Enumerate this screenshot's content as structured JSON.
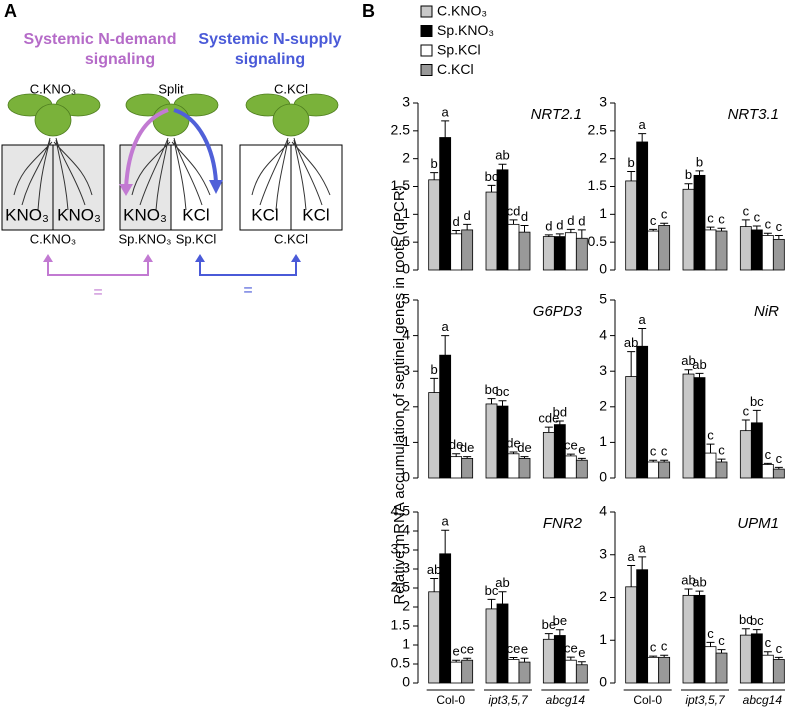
{
  "panel_a": {
    "label": "A",
    "demand_title": [
      "Systemic N-demand",
      "signaling"
    ],
    "supply_title": [
      "Systemic N-supply",
      "signaling"
    ],
    "plant_labels": [
      "C.KNO₃",
      "Split",
      "C.KCl"
    ],
    "box_labels": [
      "KNO₃",
      "KNO₃",
      "KNO₃",
      "KCl",
      "KCl",
      "KCl"
    ],
    "condition_labels": [
      "C.KNO₃",
      "Sp.KNO₃",
      "Sp.KCl",
      "C.KCl"
    ],
    "equals": [
      "=",
      "="
    ]
  },
  "panel_b": {
    "label": "B",
    "y_axis_label": "Relative mRNA accumulation of sentinel genes in roots (qPCR)"
  },
  "chart_data": [
    {
      "type": "bar",
      "title": "NRT2.1",
      "ylim": [
        0,
        3
      ],
      "yticks": [
        0,
        0.5,
        1,
        1.5,
        2,
        2.5,
        3
      ],
      "series": [
        {
          "name": "C.KNO₃",
          "color": "#c8c8c8",
          "values": [
            1.62,
            1.4,
            0.6
          ],
          "errors": [
            0.13,
            0.12,
            0.03
          ],
          "letters": [
            "b",
            "bc",
            "d"
          ]
        },
        {
          "name": "Sp.KNO₃",
          "color": "#000000",
          "values": [
            2.38,
            1.8,
            0.6
          ],
          "errors": [
            0.3,
            0.1,
            0.05
          ],
          "letters": [
            "a",
            "ab",
            "d"
          ]
        },
        {
          "name": "Sp.KCl",
          "color": "#ffffff",
          "values": [
            0.65,
            0.82,
            0.67
          ],
          "errors": [
            0.06,
            0.08,
            0.06
          ],
          "letters": [
            "d",
            "cd",
            "d"
          ]
        },
        {
          "name": "C.KCl",
          "color": "#999999",
          "values": [
            0.72,
            0.68,
            0.57
          ],
          "errors": [
            0.1,
            0.12,
            0.15
          ],
          "letters": [
            "d",
            "d",
            "d"
          ]
        }
      ]
    },
    {
      "type": "bar",
      "title": "NRT3.1",
      "ylim": [
        0,
        3
      ],
      "yticks": [
        0,
        0.5,
        1,
        1.5,
        2,
        2.5,
        3
      ],
      "series": [
        {
          "color": "#c8c8c8",
          "values": [
            1.6,
            1.45,
            0.78
          ],
          "errors": [
            0.17,
            0.1,
            0.12
          ],
          "letters": [
            "b",
            "b",
            "c"
          ]
        },
        {
          "color": "#000000",
          "values": [
            2.3,
            1.7,
            0.72
          ],
          "errors": [
            0.15,
            0.08,
            0.07
          ],
          "letters": [
            "a",
            "b",
            "c"
          ]
        },
        {
          "color": "#ffffff",
          "values": [
            0.7,
            0.72,
            0.62
          ],
          "errors": [
            0.03,
            0.05,
            0.04
          ],
          "letters": [
            "c",
            "c",
            "c"
          ]
        },
        {
          "color": "#999999",
          "values": [
            0.8,
            0.7,
            0.55
          ],
          "errors": [
            0.04,
            0.05,
            0.07
          ],
          "letters": [
            "c",
            "c",
            "c"
          ]
        }
      ]
    },
    {
      "type": "bar",
      "title": "G6PD3",
      "ylim": [
        0,
        5
      ],
      "yticks": [
        0,
        1,
        2,
        3,
        4,
        5
      ],
      "series": [
        {
          "color": "#c8c8c8",
          "values": [
            2.4,
            2.08,
            1.28
          ],
          "errors": [
            0.4,
            0.15,
            0.15
          ],
          "letters": [
            "b",
            "bc",
            "cde"
          ]
        },
        {
          "color": "#000000",
          "values": [
            3.45,
            2.02,
            1.5
          ],
          "errors": [
            0.55,
            0.15,
            0.1
          ],
          "letters": [
            "a",
            "bc",
            "bd"
          ]
        },
        {
          "color": "#ffffff",
          "values": [
            0.6,
            0.68,
            0.62
          ],
          "errors": [
            0.08,
            0.05,
            0.05
          ],
          "letters": [
            "de",
            "de",
            "ce"
          ]
        },
        {
          "color": "#999999",
          "values": [
            0.55,
            0.55,
            0.5
          ],
          "errors": [
            0.05,
            0.05,
            0.05
          ],
          "letters": [
            "de",
            "de",
            "e"
          ]
        }
      ]
    },
    {
      "type": "bar",
      "title": "NiR",
      "ylim": [
        0,
        5
      ],
      "yticks": [
        0,
        1,
        2,
        3,
        4,
        5
      ],
      "series": [
        {
          "color": "#c8c8c8",
          "values": [
            2.85,
            2.92,
            1.33
          ],
          "errors": [
            0.7,
            0.12,
            0.3
          ],
          "letters": [
            "ab",
            "ab",
            "c"
          ]
        },
        {
          "color": "#000000",
          "values": [
            3.7,
            2.82,
            1.55
          ],
          "errors": [
            0.5,
            0.12,
            0.35
          ],
          "letters": [
            "a",
            "ab",
            "bc"
          ]
        },
        {
          "color": "#ffffff",
          "values": [
            0.45,
            0.7,
            0.38
          ],
          "errors": [
            0.05,
            0.25,
            0.03
          ],
          "letters": [
            "c",
            "c",
            "c"
          ]
        },
        {
          "color": "#999999",
          "values": [
            0.45,
            0.45,
            0.25
          ],
          "errors": [
            0.05,
            0.08,
            0.05
          ],
          "letters": [
            "c",
            "c",
            "c"
          ]
        }
      ]
    },
    {
      "type": "bar",
      "title": "FNR2",
      "ylim": [
        0,
        4.5
      ],
      "yticks": [
        0,
        0.5,
        1,
        1.5,
        2,
        2.5,
        3,
        3.5,
        4,
        4.5
      ],
      "categories": [
        "Col-0",
        "ipt3,5,7",
        "abcg14"
      ],
      "series": [
        {
          "color": "#c8c8c8",
          "values": [
            2.4,
            1.95,
            1.15
          ],
          "errors": [
            0.35,
            0.25,
            0.15
          ],
          "letters": [
            "ab",
            "bc",
            "be"
          ]
        },
        {
          "color": "#000000",
          "values": [
            3.4,
            2.08,
            1.25
          ],
          "errors": [
            0.62,
            0.32,
            0.15
          ],
          "letters": [
            "a",
            "ab",
            "be"
          ]
        },
        {
          "color": "#ffffff",
          "values": [
            0.55,
            0.62,
            0.6
          ],
          "errors": [
            0.05,
            0.05,
            0.08
          ],
          "letters": [
            "e",
            "ce",
            "ce"
          ]
        },
        {
          "color": "#999999",
          "values": [
            0.6,
            0.55,
            0.48
          ],
          "errors": [
            0.05,
            0.1,
            0.08
          ],
          "letters": [
            "ce",
            "e",
            "e"
          ]
        }
      ]
    },
    {
      "type": "bar",
      "title": "UPM1",
      "ylim": [
        0,
        4
      ],
      "yticks": [
        0,
        1,
        2,
        3,
        4
      ],
      "categories": [
        "Col-0",
        "ipt3,5,7",
        "abcg14"
      ],
      "series": [
        {
          "color": "#c8c8c8",
          "values": [
            2.25,
            2.05,
            1.12
          ],
          "errors": [
            0.5,
            0.15,
            0.15
          ],
          "letters": [
            "a",
            "ab",
            "bc"
          ]
        },
        {
          "color": "#000000",
          "values": [
            2.65,
            2.05,
            1.15
          ],
          "errors": [
            0.3,
            0.1,
            0.1
          ],
          "letters": [
            "a",
            "ab",
            "bc"
          ]
        },
        {
          "color": "#ffffff",
          "values": [
            0.6,
            0.85,
            0.65
          ],
          "errors": [
            0.03,
            0.1,
            0.08
          ],
          "letters": [
            "c",
            "c",
            "c"
          ]
        },
        {
          "color": "#999999",
          "values": [
            0.6,
            0.7,
            0.55
          ],
          "errors": [
            0.05,
            0.08,
            0.05
          ],
          "letters": [
            "c",
            "c",
            "c"
          ]
        }
      ]
    }
  ]
}
